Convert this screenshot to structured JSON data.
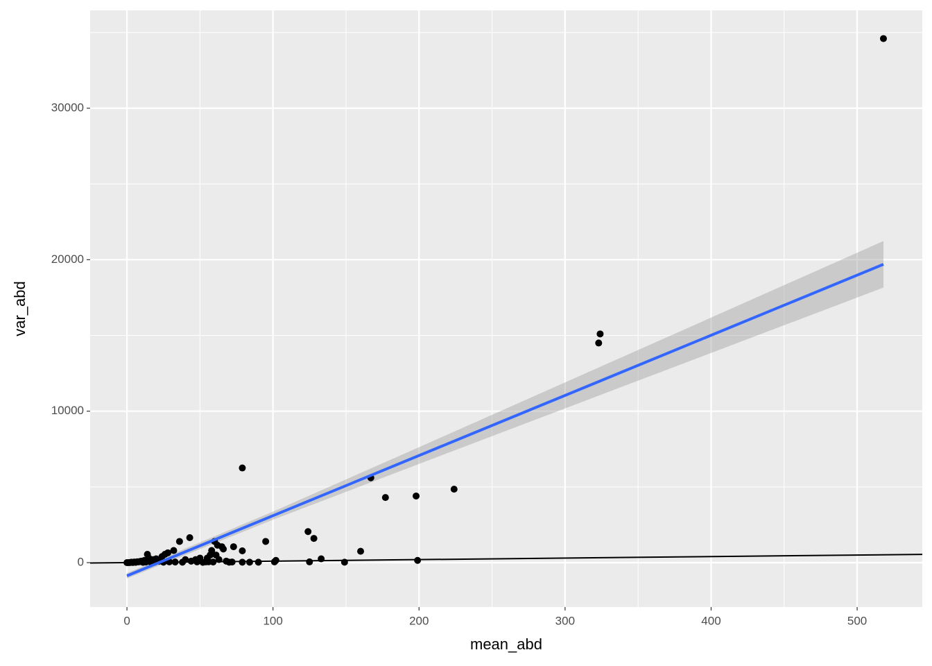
{
  "chart_data": {
    "type": "scatter",
    "x_label": "mean_abd",
    "y_label": "var_abd",
    "color": "#000000",
    "x": [
      518,
      323,
      324,
      79,
      167,
      177,
      198,
      224,
      124,
      128,
      95,
      160,
      199,
      133,
      125,
      149,
      101,
      102,
      84,
      90,
      79,
      79,
      73,
      65,
      66,
      60,
      62,
      58,
      57,
      55,
      54,
      50,
      47,
      44,
      43,
      36,
      32,
      28,
      26,
      24,
      20,
      18,
      14,
      15,
      12,
      10,
      8,
      6,
      4,
      2,
      1,
      0,
      3,
      5,
      7,
      9,
      11,
      13,
      16,
      19,
      22,
      25,
      29,
      33,
      38,
      40,
      48,
      52,
      56,
      59,
      61,
      63,
      68,
      70,
      72
    ],
    "values": [
      34600,
      14500,
      15100,
      6250,
      5600,
      4300,
      4400,
      4850,
      2050,
      1600,
      1400,
      750,
      150,
      250,
      50,
      30,
      50,
      150,
      30,
      30,
      780,
      30,
      1050,
      1050,
      900,
      1400,
      1150,
      800,
      500,
      300,
      50,
      300,
      200,
      100,
      1650,
      1400,
      800,
      650,
      550,
      400,
      250,
      200,
      550,
      300,
      150,
      100,
      50,
      20,
      10,
      5,
      2,
      0,
      30,
      40,
      60,
      80,
      20,
      40,
      60,
      30,
      100,
      30,
      50,
      40,
      30,
      200,
      50,
      20,
      60,
      40,
      500,
      200,
      100,
      30,
      40
    ],
    "fit": {
      "x": [
        0,
        100,
        200,
        300,
        400,
        518
      ],
      "values": [
        -870,
        3100,
        7070,
        11040,
        15010,
        19695
      ],
      "lower": [
        -1047,
        2834,
        6517,
        10182,
        13843,
        18160
      ],
      "upper": [
        -693,
        3366,
        7623,
        11898,
        16177,
        21230
      ],
      "color": "#3366ff",
      "band_color": "#999999"
    },
    "reference_line": {
      "slope": 1,
      "intercept": 0,
      "color": "#000000"
    },
    "xlim": [
      -25.2,
      544.6
    ],
    "ylim": [
      -2931,
      36458
    ],
    "xticks": [
      0,
      100,
      200,
      300,
      400,
      500
    ],
    "yticks": [
      0,
      10000,
      20000,
      30000
    ],
    "x_minor_ticks": [
      50,
      150,
      250,
      350,
      450
    ],
    "y_minor_ticks": [
      5000,
      15000,
      25000,
      35000
    ],
    "grid": true
  }
}
